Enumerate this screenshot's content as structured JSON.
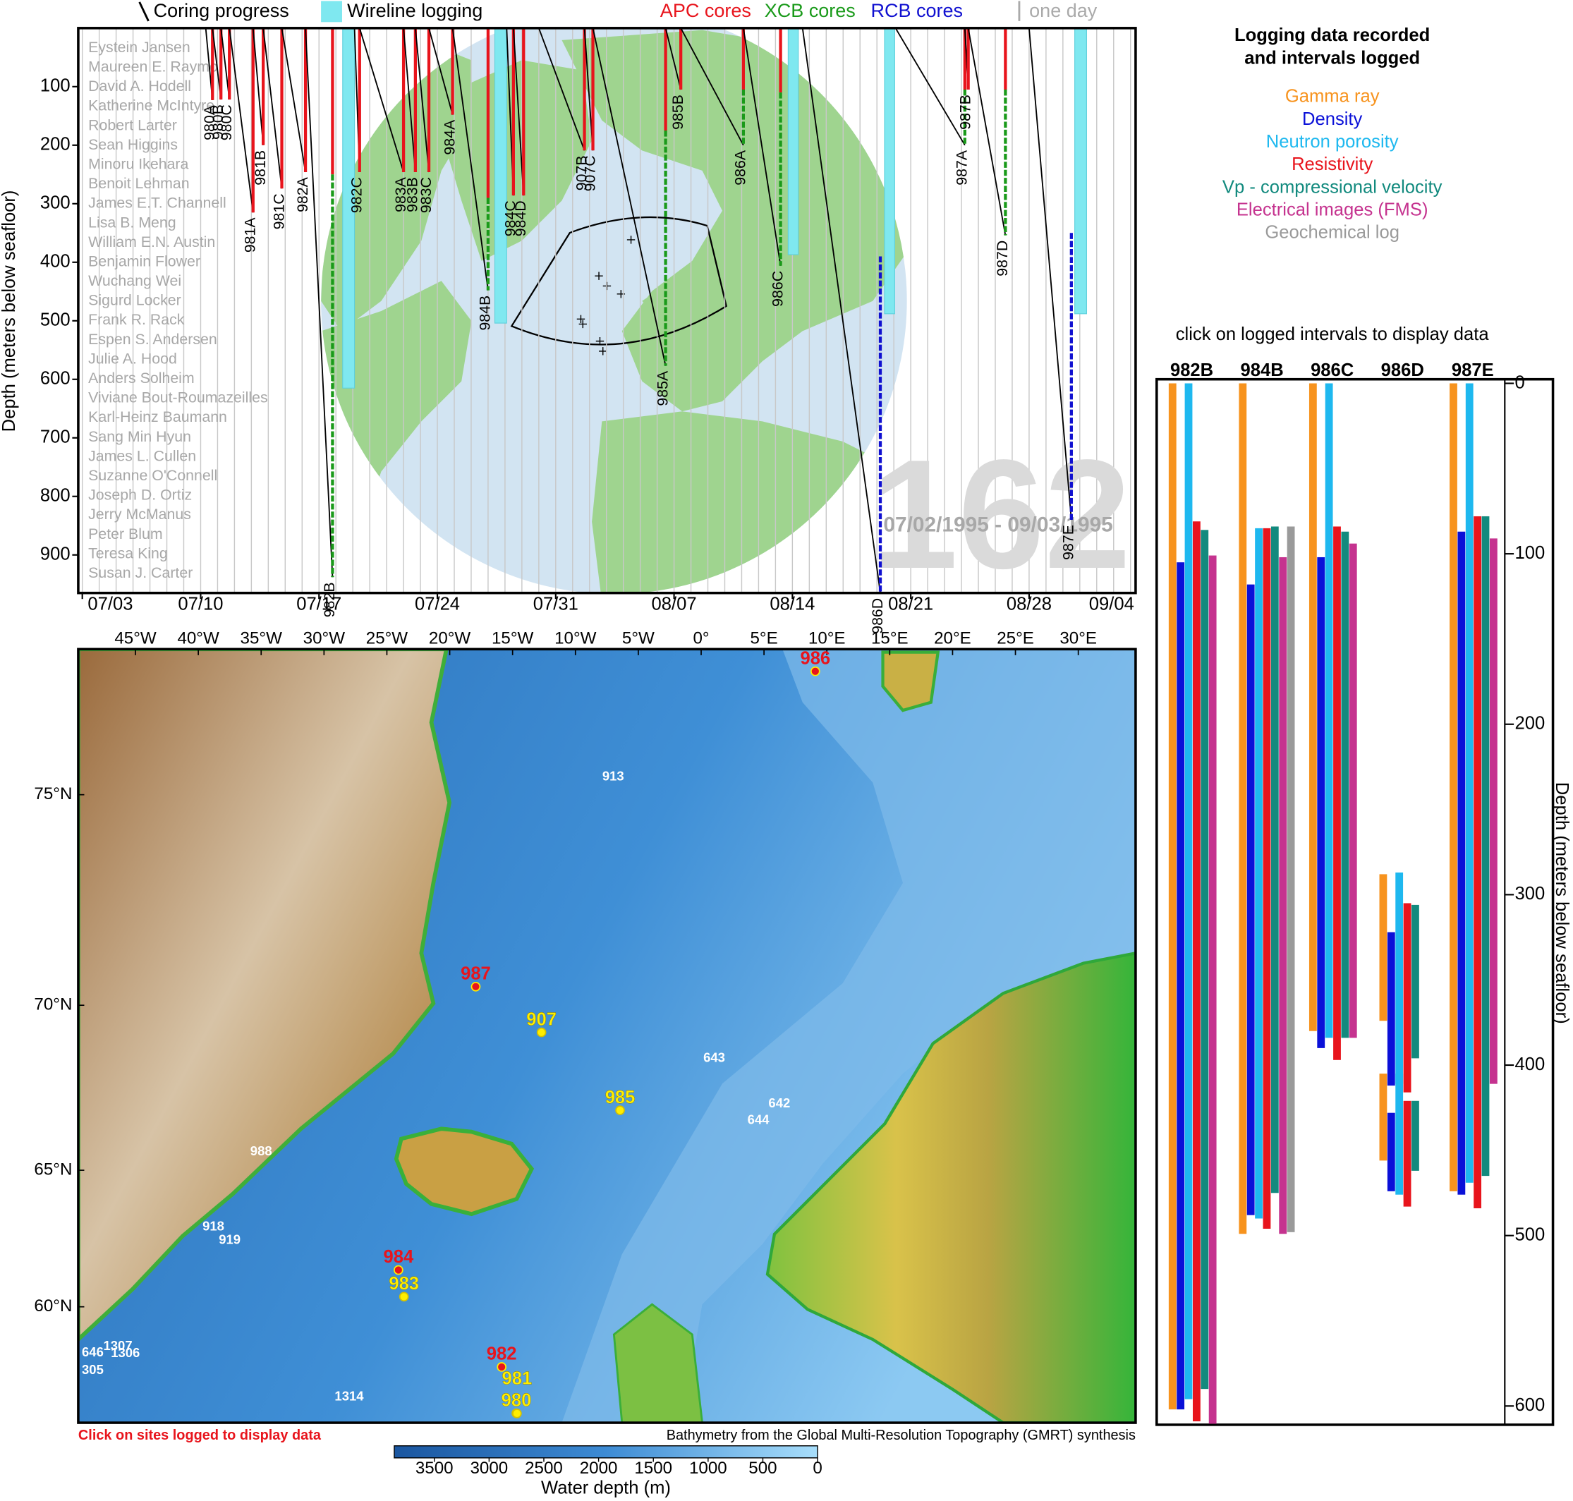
{
  "chart_data": [
    {
      "type": "timeline",
      "legend": {
        "coring": "Coring progress",
        "wireline": "Wireline logging",
        "day": "one day"
      },
      "core_types": [
        {
          "name": "APC cores",
          "color": "#e8141c"
        },
        {
          "name": "XCB cores",
          "color": "#1a9a1a"
        },
        {
          "name": "RCB cores",
          "color": "#1010d0"
        }
      ],
      "wireline_color": "#7fe8f0",
      "ylabel": "Depth (meters below seafloor)",
      "xlim": [
        183.76,
        246.3
      ],
      "ylim": [
        0,
        965
      ],
      "xticks": [
        {
          "value": 184,
          "label": "07/03"
        },
        {
          "value": 191,
          "label": "07/10"
        },
        {
          "value": 198,
          "label": "07/17"
        },
        {
          "value": 205,
          "label": "07/24"
        },
        {
          "value": 212,
          "label": "07/31"
        },
        {
          "value": 219,
          "label": "08/07"
        },
        {
          "value": 226,
          "label": "08/14"
        },
        {
          "value": 233,
          "label": "08/21"
        },
        {
          "value": 240,
          "label": "08/28"
        },
        {
          "value": 247,
          "label": "09/04"
        }
      ],
      "yticks": [
        100,
        200,
        300,
        400,
        500,
        600,
        700,
        800,
        900
      ],
      "day_grid": [
        184,
        185,
        186,
        187,
        188,
        189,
        190,
        191,
        192,
        193,
        194,
        195,
        196,
        197,
        198,
        199,
        200,
        201,
        202,
        203,
        204,
        205,
        206,
        207,
        208,
        209,
        210,
        211,
        212,
        213,
        214,
        215,
        216,
        217,
        218,
        219,
        220,
        221,
        222,
        223,
        224,
        225,
        226,
        227,
        228,
        229,
        230,
        231,
        232,
        233,
        234,
        235,
        236,
        237,
        238,
        239,
        240,
        241,
        242,
        243,
        244,
        245,
        246
      ],
      "crew": [
        "Eystein Jansen",
        "Maureen E. Raymo",
        "David A. Hodell",
        "Katherine McIntyre",
        "Robert Larter",
        "Sean Higgins",
        "Minoru Ikehara",
        "Benoit Lehman",
        "James E.T. Channell",
        "Lisa B. Meng",
        "William E.N. Austin",
        "Benjamin Flower",
        "Wuchang Wei",
        "Sigurd Locker",
        "Frank R. Rack",
        "Espen S. Andersen",
        "Julie A. Hood",
        "Anders Solheim",
        "Viviane Bout-Roumazeilles",
        "Karl-Heinz Baumann",
        "Sang Min Hyun",
        "James L. Cullen",
        "Suzanne O'Connell",
        "Joseph D. Ortiz",
        "Jerry McManus",
        "Peter Blum",
        "Teresa King",
        "Susan J. Carter"
      ],
      "leg": "162",
      "dates": "07/02/1995 - 09/03/1995",
      "holes": [
        {
          "name": "980A",
          "start": 191.3,
          "end": 191.7,
          "depth": 123,
          "cores": [
            [
              0,
              0,
              123
            ]
          ]
        },
        {
          "name": "980B",
          "start": 191.7,
          "end": 192.2,
          "depth": 122,
          "cores": [
            [
              0,
              0,
              122
            ]
          ]
        },
        {
          "name": "980C",
          "start": 192.2,
          "end": 192.7,
          "depth": 122,
          "cores": [
            [
              0,
              0,
              122
            ]
          ]
        },
        {
          "name": "981A",
          "start": 192.7,
          "end": 194.1,
          "depth": 315,
          "cores": [
            [
              0,
              0,
              315
            ]
          ]
        },
        {
          "name": "981B",
          "start": 194.1,
          "end": 194.7,
          "depth": 200,
          "cores": [
            [
              0,
              0,
              200
            ]
          ]
        },
        {
          "name": "981C",
          "start": 194.7,
          "end": 195.8,
          "depth": 274,
          "cores": [
            [
              0,
              0,
              274
            ]
          ]
        },
        {
          "name": "982A",
          "start": 195.8,
          "end": 197.2,
          "depth": 246,
          "cores": [
            [
              0,
              0,
              246
            ]
          ]
        },
        {
          "name": "982B",
          "start": 197.2,
          "end": 198.8,
          "depth": 938,
          "cores": [
            [
              0,
              0,
              250
            ],
            [
              1,
              250,
              938
            ]
          ]
        },
        {
          "name": "982C",
          "start": 200.1,
          "end": 200.4,
          "depth": 246,
          "cores": [
            [
              0,
              0,
              246
            ]
          ]
        },
        {
          "name": "983A",
          "start": 200.4,
          "end": 203.0,
          "depth": 246,
          "cores": [
            [
              0,
              0,
              246
            ]
          ]
        },
        {
          "name": "983B",
          "start": 203.0,
          "end": 203.7,
          "depth": 246,
          "cores": [
            [
              0,
              0,
              246
            ]
          ]
        },
        {
          "name": "983C",
          "start": 203.7,
          "end": 204.5,
          "depth": 246,
          "cores": [
            [
              0,
              0,
              246
            ]
          ]
        },
        {
          "name": "984A",
          "start": 204.5,
          "end": 205.9,
          "depth": 148,
          "cores": [
            [
              0,
              0,
              148
            ]
          ]
        },
        {
          "name": "984B",
          "start": 205.9,
          "end": 208.0,
          "depth": 448,
          "cores": [
            [
              0,
              0,
              290
            ],
            [
              1,
              290,
              448
            ]
          ]
        },
        {
          "name": "984C",
          "start": 209.1,
          "end": 209.5,
          "depth": 286,
          "cores": [
            [
              0,
              0,
              286
            ]
          ]
        },
        {
          "name": "984D",
          "start": 209.5,
          "end": 210.1,
          "depth": 286,
          "cores": [
            [
              0,
              0,
              286
            ]
          ]
        },
        {
          "name": "907B",
          "start": 211.0,
          "end": 213.7,
          "depth": 209,
          "cores": [
            [
              0,
              0,
              209
            ]
          ]
        },
        {
          "name": "907C",
          "start": 213.7,
          "end": 214.2,
          "depth": 209,
          "cores": [
            [
              0,
              0,
              209
            ]
          ]
        },
        {
          "name": "985A",
          "start": 214.2,
          "end": 218.5,
          "depth": 577,
          "cores": [
            [
              0,
              0,
              175
            ],
            [
              1,
              175,
              577
            ]
          ]
        },
        {
          "name": "985B",
          "start": 218.5,
          "end": 219.4,
          "depth": 105,
          "cores": [
            [
              0,
              0,
              105
            ]
          ]
        },
        {
          "name": "986A",
          "start": 219.4,
          "end": 223.1,
          "depth": 200,
          "cores": [
            [
              0,
              0,
              105
            ],
            [
              1,
              105,
              200
            ]
          ]
        },
        {
          "name": "986C",
          "start": 223.1,
          "end": 225.3,
          "depth": 406,
          "cores": [
            [
              0,
              0,
              110
            ],
            [
              1,
              110,
              406
            ]
          ]
        },
        {
          "name": "986D",
          "start": 226.6,
          "end": 231.2,
          "depth": 965,
          "cores": [
            [
              2,
              390,
              965
            ]
          ]
        },
        {
          "name": "987A",
          "start": 232.1,
          "end": 236.2,
          "depth": 200,
          "cores": [
            [
              0,
              0,
              105
            ],
            [
              1,
              105,
              200
            ]
          ]
        },
        {
          "name": "987B",
          "start": 236.2,
          "end": 236.4,
          "depth": 105,
          "cores": [
            [
              0,
              0,
              105
            ]
          ]
        },
        {
          "name": "987D",
          "start": 236.4,
          "end": 238.6,
          "depth": 354,
          "cores": [
            [
              0,
              0,
              105
            ],
            [
              1,
              105,
              354
            ]
          ]
        },
        {
          "name": "987E",
          "start": 240.0,
          "end": 242.5,
          "depth": 840,
          "cores": [
            [
              2,
              350,
              840
            ]
          ]
        }
      ],
      "logging": [
        {
          "start": 199.4,
          "end": 200.1,
          "depth": 615
        },
        {
          "start": 208.4,
          "end": 209.1,
          "depth": 504
        },
        {
          "start": 225.75,
          "end": 226.35,
          "depth": 387
        },
        {
          "start": 231.45,
          "end": 232.05,
          "depth": 488
        },
        {
          "start": 242.7,
          "end": 243.4,
          "depth": 488
        }
      ]
    },
    {
      "type": "floating-bar",
      "title": [
        "Logging data recorded",
        "and intervals logged"
      ],
      "note": "click on logged intervals to display data",
      "ylabel": "Depth (meters below seafloor)",
      "ylim": [
        -2.4,
        611
      ],
      "yticks": [
        0,
        100,
        200,
        300,
        400,
        500,
        600
      ],
      "logs": [
        {
          "name": "Gamma ray",
          "color": "#f7931e"
        },
        {
          "name": "Density",
          "color": "#0a10d8"
        },
        {
          "name": "Neutron porosity",
          "color": "#1eb8ef"
        },
        {
          "name": "Resistivity",
          "color": "#e8141c"
        },
        {
          "name": "Vp - compressional velocity",
          "color": "#128a7e"
        },
        {
          "name": "Electrical images (FMS)",
          "color": "#c5338f"
        },
        {
          "name": "Geochemical log",
          "color": "#9a9a9a"
        }
      ],
      "holes": [
        {
          "name": "982B",
          "intervals": [
            [
              0,
              0,
              602
            ],
            [
              1,
              105,
              602
            ],
            [
              2,
              0,
              596
            ],
            [
              3,
              81,
              609
            ],
            [
              4,
              86,
              590
            ],
            [
              5,
              101,
              611
            ]
          ]
        },
        {
          "name": "984B",
          "intervals": [
            [
              0,
              0,
              499
            ],
            [
              1,
              118,
              488
            ],
            [
              2,
              85,
              490
            ],
            [
              3,
              85,
              496
            ],
            [
              4,
              84,
              475
            ],
            [
              5,
              102,
              499
            ],
            [
              6,
              84,
              498
            ]
          ]
        },
        {
          "name": "986C",
          "intervals": [
            [
              0,
              0,
              380
            ],
            [
              1,
              102,
              390
            ],
            [
              2,
              0,
              384
            ],
            [
              3,
              84,
              397
            ],
            [
              4,
              87,
              384
            ],
            [
              5,
              94,
              384
            ]
          ]
        },
        {
          "name": "986D",
          "intervals": [
            [
              0,
              288,
              374
            ],
            [
              1,
              322,
              412
            ],
            [
              2,
              287,
              411
            ],
            [
              3,
              305,
              416
            ],
            [
              4,
              306,
              396
            ],
            [
              0,
              405,
              456
            ],
            [
              1,
              428,
              474
            ],
            [
              2,
              405,
              476
            ],
            [
              3,
              421,
              483
            ],
            [
              4,
              421,
              462
            ]
          ]
        },
        {
          "name": "987E",
          "intervals": [
            [
              0,
              0,
              474
            ],
            [
              1,
              87,
              476
            ],
            [
              2,
              0,
              469
            ],
            [
              3,
              78,
              484
            ],
            [
              4,
              78,
              465
            ],
            [
              5,
              91,
              411
            ]
          ]
        }
      ]
    },
    {
      "type": "map",
      "projection": "mercator",
      "xlim": [
        -49.55,
        34.56
      ],
      "ylim": [
        55.06,
        77.72
      ],
      "xticks": [
        {
          "value": -45,
          "label": "45°W"
        },
        {
          "value": -40,
          "label": "40°W"
        },
        {
          "value": -35,
          "label": "35°W"
        },
        {
          "value": -30,
          "label": "30°W"
        },
        {
          "value": -25,
          "label": "25°W"
        },
        {
          "value": -20,
          "label": "20°W"
        },
        {
          "value": -15,
          "label": "15°W"
        },
        {
          "value": -10,
          "label": "10°W"
        },
        {
          "value": -5,
          "label": "5°W"
        },
        {
          "value": 0,
          "label": "0°"
        },
        {
          "value": 5,
          "label": "5°E"
        },
        {
          "value": 10,
          "label": "10°E"
        },
        {
          "value": 15,
          "label": "15°E"
        },
        {
          "value": 20,
          "label": "20°E"
        },
        {
          "value": 25,
          "label": "25°E"
        },
        {
          "value": 30,
          "label": "30°E"
        }
      ],
      "yticks": [
        {
          "value": 60,
          "label": "60°N"
        },
        {
          "value": 65,
          "label": "65°N"
        },
        {
          "value": 70,
          "label": "70°N"
        },
        {
          "value": 75,
          "label": "75°N"
        }
      ],
      "site_colors": {
        "logged": "#e8141c",
        "cored": "#ffee00",
        "other": "#ffffff"
      },
      "sites": [
        {
          "name": "986",
          "lat": 77.34,
          "lon": 9.08,
          "status": "logged"
        },
        {
          "name": "987",
          "lat": 70.5,
          "lon": -17.93,
          "status": "logged"
        },
        {
          "name": "984",
          "lat": 61.43,
          "lon": -24.08,
          "status": "logged"
        },
        {
          "name": "982",
          "lat": 57.52,
          "lon": -15.87,
          "status": "logged"
        },
        {
          "name": "907",
          "lat": 69.25,
          "lon": -12.7,
          "status": "cored"
        },
        {
          "name": "985",
          "lat": 66.94,
          "lon": -6.45,
          "status": "cored"
        },
        {
          "name": "983",
          "lat": 60.4,
          "lon": -23.64,
          "status": "cored"
        },
        {
          "name": "980",
          "lat": 55.49,
          "lon": -14.7,
          "status": "cored"
        },
        {
          "name": "981",
          "lat": 55.48,
          "lon": -14.65,
          "status": "cored"
        },
        {
          "name": "913",
          "lat": 75.36,
          "lon": -7.0,
          "status": "other"
        },
        {
          "name": "643",
          "lat": 68.5,
          "lon": 1.04,
          "status": "other"
        },
        {
          "name": "642",
          "lat": 67.14,
          "lon": 6.22,
          "status": "other"
        },
        {
          "name": "644",
          "lat": 66.62,
          "lon": 4.55,
          "status": "other"
        },
        {
          "name": "988",
          "lat": 65.61,
          "lon": -35.0,
          "status": "other"
        },
        {
          "name": "918",
          "lat": 63.02,
          "lon": -38.8,
          "status": "other"
        },
        {
          "name": "919",
          "lat": 62.54,
          "lon": -37.5,
          "status": "other"
        },
        {
          "name": "1307",
          "lat": 58.38,
          "lon": -46.4,
          "status": "other"
        },
        {
          "name": "1306",
          "lat": 58.08,
          "lon": -45.8,
          "status": "other"
        },
        {
          "name": "646",
          "lat": 58.12,
          "lon": -48.4,
          "status": "other"
        },
        {
          "name": "305",
          "lat": 57.36,
          "lon": -48.4,
          "status": "other"
        },
        {
          "name": "1314",
          "lat": 56.22,
          "lon": -28.0,
          "status": "other"
        }
      ],
      "click_note": "Click on sites logged to display data",
      "credit": "Bathymetry from the Global Multi-Resolution Topography (GMRT) synthesis",
      "colorbar": {
        "label": "Water depth (m)",
        "lim": [
          0,
          3866
        ],
        "ticks": [
          0,
          500,
          1000,
          1500,
          2000,
          2500,
          3000,
          3500
        ]
      }
    }
  ]
}
